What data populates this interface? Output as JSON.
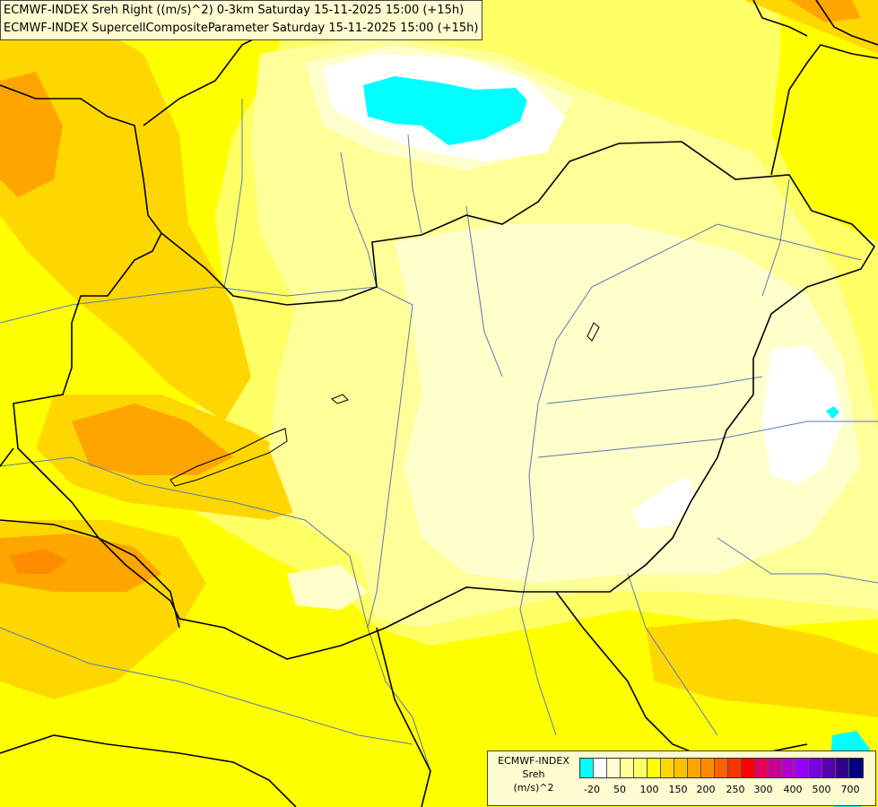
{
  "title": {
    "line1": "ECMWF-INDEX Sreh Right ((m/s)^2) 0-3km Saturday 15-11-2025 15:00 (+15h)",
    "line2": "ECMWF-INDEX SupercellCompositeParameter Saturday 15-11-2025 15:00 (+15h)"
  },
  "legend": {
    "title_line1": "ECMWF-INDEX",
    "title_line2": "Sreh",
    "title_line3": "(m/s)^2",
    "colors": [
      "#00ffff",
      "#ffffff",
      "#ffffcc",
      "#ffff99",
      "#ffff66",
      "#ffff00",
      "#ffd700",
      "#ffc000",
      "#ffa500",
      "#ff8c00",
      "#ff6000",
      "#ff3300",
      "#ff0000",
      "#e6005c",
      "#cc0099",
      "#b300cc",
      "#9900ff",
      "#7a00e0",
      "#5500b0",
      "#330088",
      "#000080"
    ],
    "ticks": [
      "-20",
      "50",
      "100",
      "150",
      "200",
      "250",
      "300",
      "400",
      "500",
      "700"
    ]
  },
  "colors": {
    "cyan": "#00ffff",
    "white": "#ffffff",
    "pale_yellow": "#ffffcc",
    "light_yellow": "#ffff99",
    "yellow": "#ffff66",
    "bright_yellow": "#ffff00",
    "gold": "#ffd700",
    "orange": "#ffa500",
    "dark_orange": "#ff8c00",
    "red_orange": "#ff6000",
    "border": "#000000",
    "river": "#5a78b4"
  }
}
